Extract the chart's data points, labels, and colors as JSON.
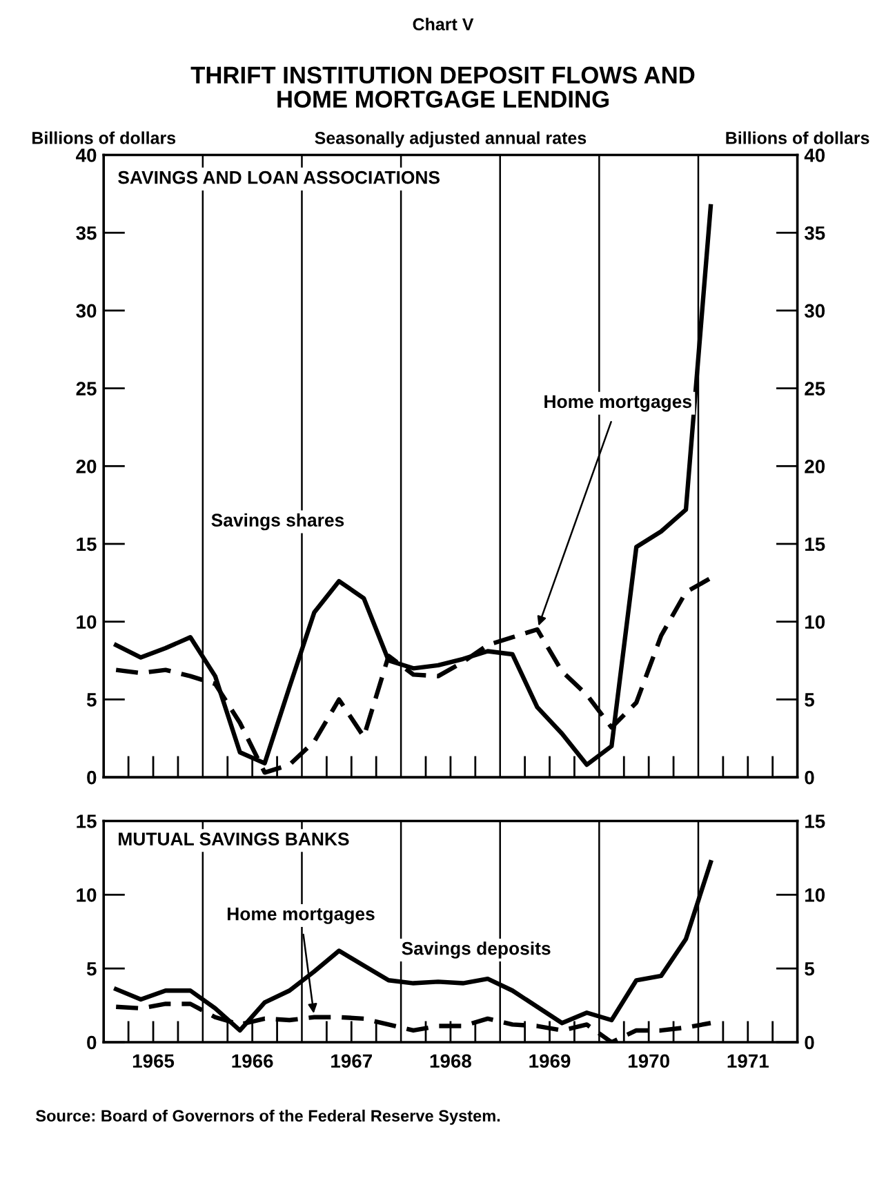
{
  "chart_data": [
    {
      "type": "line",
      "title": "THRIFT INSTITUTION DEPOSIT FLOWS AND\nHOME MORTGAGE LENDING",
      "subtitle": "Seasonally adjusted annual rates",
      "ylabel": "Billions of dollars",
      "y2label": "Billions of dollars",
      "annotations": [
        "Chart V",
        "SAVINGS AND LOAN ASSOCIATIONS"
      ],
      "x": [
        1965.125,
        1965.375,
        1965.625,
        1965.875,
        1966.125,
        1966.375,
        1966.625,
        1966.875,
        1967.125,
        1967.375,
        1967.625,
        1967.875,
        1968.125,
        1968.375,
        1968.625,
        1968.875,
        1969.125,
        1969.375,
        1969.625,
        1969.875,
        1970.125,
        1970.375,
        1970.625,
        1970.875,
        1971.125
      ],
      "series": [
        {
          "name": "Savings shares",
          "color": "#000000",
          "line_style": "solid",
          "values": [
            8.5,
            7.7,
            8.3,
            9.0,
            6.5,
            1.6,
            0.9,
            5.8,
            10.6,
            12.6,
            11.5,
            7.5,
            7.0,
            7.2,
            7.6,
            8.1,
            7.9,
            4.5,
            2.8,
            0.8,
            2.0,
            14.8,
            15.8,
            17.2,
            36.7
          ]
        },
        {
          "name": "Home mortgages",
          "color": "#000000",
          "line_style": "dashed",
          "values": [
            6.9,
            6.7,
            6.9,
            6.5,
            6.0,
            3.5,
            0.3,
            0.8,
            2.3,
            5.0,
            2.6,
            7.8,
            6.6,
            6.5,
            7.4,
            8.5,
            9.0,
            9.5,
            6.8,
            5.3,
            3.2,
            4.8,
            9.1,
            11.9,
            12.8
          ]
        }
      ],
      "xlim": [
        1965,
        1972
      ],
      "xticks": [
        {
          "value": 1965.25,
          "label": null
        },
        {
          "value": 1965.5,
          "label": null
        },
        {
          "value": 1965.75,
          "label": null
        },
        {
          "value": 1966.25,
          "label": null
        },
        {
          "value": 1966.5,
          "label": null
        },
        {
          "value": 1966.75,
          "label": null
        },
        {
          "value": 1967.25,
          "label": null
        },
        {
          "value": 1967.5,
          "label": null
        },
        {
          "value": 1967.75,
          "label": null
        },
        {
          "value": 1968.25,
          "label": null
        },
        {
          "value": 1968.5,
          "label": null
        },
        {
          "value": 1968.75,
          "label": null
        },
        {
          "value": 1969.25,
          "label": null
        },
        {
          "value": 1969.5,
          "label": null
        },
        {
          "value": 1969.75,
          "label": null
        },
        {
          "value": 1970.25,
          "label": null
        },
        {
          "value": 1970.5,
          "label": null
        },
        {
          "value": 1970.75,
          "label": null
        },
        {
          "value": 1971.25,
          "label": null
        },
        {
          "value": 1971.5,
          "label": null
        },
        {
          "value": 1971.75,
          "label": null
        }
      ],
      "ylim": [
        0,
        40
      ],
      "yticks": [
        0,
        5,
        10,
        15,
        20,
        25,
        30,
        35,
        40
      ],
      "y2lim": [
        0,
        40
      ],
      "y2ticks": [
        0,
        5,
        10,
        15,
        20,
        25,
        30,
        35,
        40
      ],
      "ref_lines": [
        {
          "axis": "x",
          "value": 1966
        },
        {
          "axis": "x",
          "value": 1967
        },
        {
          "axis": "x",
          "value": 1968
        },
        {
          "axis": "x",
          "value": 1969
        },
        {
          "axis": "x",
          "value": 1970
        },
        {
          "axis": "x",
          "value": 1971
        }
      ],
      "tick_labels": "y",
      "grid": false
    },
    {
      "type": "line",
      "annotations": [
        "MUTUAL SAVINGS BANKS",
        "Source: Board of Governors of the Federal Reserve System."
      ],
      "x": [
        1965.125,
        1965.375,
        1965.625,
        1965.875,
        1966.125,
        1966.375,
        1966.625,
        1966.875,
        1967.125,
        1967.375,
        1967.625,
        1967.875,
        1968.125,
        1968.375,
        1968.625,
        1968.875,
        1969.125,
        1969.375,
        1969.625,
        1969.875,
        1970.125,
        1970.375,
        1970.625,
        1970.875,
        1971.125
      ],
      "series": [
        {
          "name": "Savings deposits",
          "color": "#000000",
          "line_style": "solid",
          "values": [
            3.6,
            2.9,
            3.5,
            3.5,
            2.3,
            0.8,
            2.7,
            3.5,
            4.8,
            6.2,
            5.2,
            4.2,
            4.0,
            4.1,
            4.0,
            4.3,
            3.5,
            2.4,
            1.3,
            2.0,
            1.5,
            4.2,
            4.5,
            7.0,
            12.2
          ]
        },
        {
          "name": "Home mortgages",
          "color": "#000000",
          "line_style": "dashed",
          "values": [
            2.4,
            2.3,
            2.6,
            2.6,
            1.7,
            1.2,
            1.6,
            1.5,
            1.7,
            1.7,
            1.6,
            1.2,
            0.8,
            1.1,
            1.1,
            1.6,
            1.2,
            1.1,
            0.8,
            1.2,
            0.0,
            0.8,
            0.8,
            1.0,
            1.3
          ]
        }
      ],
      "xlim": [
        1965,
        1972
      ],
      "xticks": [
        {
          "value": 1965.25,
          "label": null
        },
        {
          "value": 1965.5,
          "label": "1965"
        },
        {
          "value": 1965.75,
          "label": null
        },
        {
          "value": 1966.25,
          "label": null
        },
        {
          "value": 1966.5,
          "label": "1966"
        },
        {
          "value": 1966.75,
          "label": null
        },
        {
          "value": 1967.25,
          "label": null
        },
        {
          "value": 1967.5,
          "label": "1967"
        },
        {
          "value": 1967.75,
          "label": null
        },
        {
          "value": 1968.25,
          "label": null
        },
        {
          "value": 1968.5,
          "label": "1968"
        },
        {
          "value": 1968.75,
          "label": null
        },
        {
          "value": 1969.25,
          "label": null
        },
        {
          "value": 1969.5,
          "label": "1969"
        },
        {
          "value": 1969.75,
          "label": null
        },
        {
          "value": 1970.25,
          "label": null
        },
        {
          "value": 1970.5,
          "label": "1970"
        },
        {
          "value": 1970.75,
          "label": null
        },
        {
          "value": 1971.25,
          "label": null
        },
        {
          "value": 1971.5,
          "label": "1971"
        },
        {
          "value": 1971.75,
          "label": null
        }
      ],
      "ylim": [
        0,
        15
      ],
      "yticks": [
        0,
        5,
        10,
        15
      ],
      "y2lim": [
        0,
        15
      ],
      "y2ticks": [
        0,
        5,
        10,
        15
      ],
      "ref_lines": [
        {
          "axis": "x",
          "value": 1966
        },
        {
          "axis": "x",
          "value": 1967
        },
        {
          "axis": "x",
          "value": 1968
        },
        {
          "axis": "x",
          "value": 1969
        },
        {
          "axis": "x",
          "value": 1970
        },
        {
          "axis": "x",
          "value": 1971
        }
      ],
      "grid": false
    }
  ]
}
